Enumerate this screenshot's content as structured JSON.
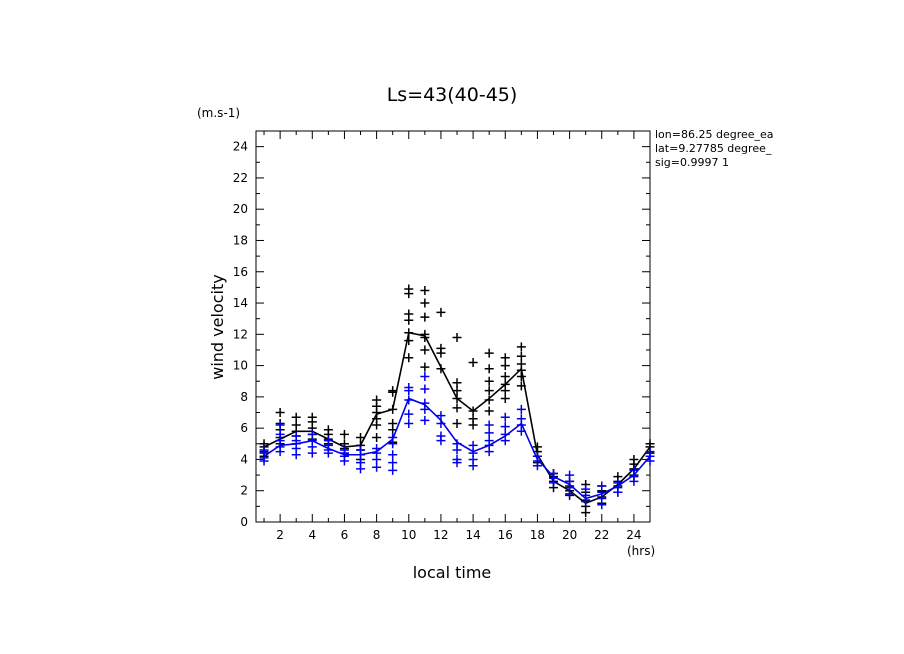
{
  "chart_data": {
    "type": "scatter",
    "title": "Ls=43(40-45)",
    "xlabel": "local time",
    "ylabel": "wind velocity",
    "x_unit": "(hrs)",
    "y_unit": "(m.s-1)",
    "xlim": [
      0.5,
      25
    ],
    "ylim": [
      0,
      25
    ],
    "x_ticks": [
      2,
      4,
      6,
      8,
      10,
      12,
      14,
      16,
      18,
      20,
      22,
      24
    ],
    "y_ticks": [
      0,
      2,
      4,
      6,
      8,
      10,
      12,
      14,
      16,
      18,
      20,
      22,
      24
    ],
    "annotations": [
      "lon=86.25 degree_ea",
      "lat=9.27785 degree_",
      "sig=0.9997 1"
    ],
    "series": [
      {
        "name": "black",
        "color": "#000000",
        "mean": {
          "x": [
            1,
            2,
            3,
            4,
            5,
            6,
            7,
            8,
            9,
            10,
            11,
            12,
            13,
            14,
            15,
            16,
            17,
            18,
            19,
            20,
            21,
            22,
            23,
            24,
            25
          ],
          "y": [
            4.8,
            5.3,
            5.8,
            5.8,
            5.3,
            4.8,
            4.9,
            6.9,
            7.2,
            12.1,
            11.9,
            9.9,
            7.9,
            7.1,
            7.9,
            8.8,
            9.8,
            4.3,
            2.6,
            2.0,
            1.2,
            1.6,
            2.4,
            3.4,
            4.8
          ]
        },
        "points": [
          [
            1,
            4.8
          ],
          [
            1,
            5.0
          ],
          [
            1,
            4.5
          ],
          [
            1,
            4.2
          ],
          [
            2,
            5.0
          ],
          [
            2,
            5.4
          ],
          [
            2,
            5.9
          ],
          [
            2,
            6.3
          ],
          [
            2,
            7.0
          ],
          [
            3,
            5.5
          ],
          [
            3,
            5.8
          ],
          [
            3,
            6.2
          ],
          [
            3,
            6.7
          ],
          [
            4,
            5.3
          ],
          [
            4,
            5.6
          ],
          [
            4,
            6.0
          ],
          [
            4,
            6.4
          ],
          [
            4,
            6.7
          ],
          [
            5,
            5.0
          ],
          [
            5,
            5.3
          ],
          [
            5,
            5.6
          ],
          [
            5,
            5.9
          ],
          [
            6,
            4.4
          ],
          [
            6,
            4.7
          ],
          [
            6,
            5.0
          ],
          [
            6,
            5.6
          ],
          [
            7,
            4.0
          ],
          [
            7,
            4.6
          ],
          [
            7,
            4.9
          ],
          [
            7,
            5.4
          ],
          [
            8,
            5.4
          ],
          [
            8,
            6.2
          ],
          [
            8,
            6.6
          ],
          [
            8,
            7.0
          ],
          [
            8,
            7.4
          ],
          [
            8,
            7.8
          ],
          [
            9,
            5.1
          ],
          [
            9,
            5.9
          ],
          [
            9,
            6.3
          ],
          [
            9,
            7.2
          ],
          [
            9,
            8.3
          ],
          [
            9,
            8.4
          ],
          [
            10,
            10.5
          ],
          [
            10,
            11.6
          ],
          [
            10,
            12.1
          ],
          [
            10,
            12.9
          ],
          [
            10,
            13.3
          ],
          [
            10,
            14.6
          ],
          [
            10,
            14.9
          ],
          [
            11,
            9.9
          ],
          [
            11,
            11.0
          ],
          [
            11,
            11.8
          ],
          [
            11,
            12.0
          ],
          [
            11,
            13.1
          ],
          [
            11,
            14.0
          ],
          [
            11,
            14.8
          ],
          [
            12,
            9.8
          ],
          [
            12,
            10.8
          ],
          [
            12,
            11.1
          ],
          [
            12,
            13.4
          ],
          [
            13,
            6.3
          ],
          [
            13,
            7.3
          ],
          [
            13,
            7.9
          ],
          [
            13,
            8.4
          ],
          [
            13,
            8.9
          ],
          [
            13,
            11.8
          ],
          [
            14,
            6.2
          ],
          [
            14,
            6.6
          ],
          [
            14,
            7.1
          ],
          [
            14,
            10.2
          ],
          [
            15,
            7.1
          ],
          [
            15,
            7.8
          ],
          [
            15,
            8.4
          ],
          [
            15,
            9.0
          ],
          [
            15,
            9.8
          ],
          [
            15,
            10.8
          ],
          [
            16,
            7.9
          ],
          [
            16,
            8.4
          ],
          [
            16,
            8.8
          ],
          [
            16,
            9.3
          ],
          [
            16,
            10.0
          ],
          [
            16,
            10.5
          ],
          [
            17,
            8.7
          ],
          [
            17,
            9.3
          ],
          [
            17,
            9.7
          ],
          [
            17,
            10.1
          ],
          [
            17,
            10.6
          ],
          [
            17,
            11.2
          ],
          [
            18,
            3.8
          ],
          [
            18,
            4.2
          ],
          [
            18,
            4.5
          ],
          [
            18,
            4.8
          ],
          [
            19,
            2.2
          ],
          [
            19,
            2.6
          ],
          [
            19,
            2.9
          ],
          [
            19,
            3.1
          ],
          [
            20,
            1.7
          ],
          [
            20,
            2.0
          ],
          [
            20,
            2.3
          ],
          [
            20,
            2.6
          ],
          [
            21,
            0.6
          ],
          [
            21,
            1.0
          ],
          [
            21,
            1.4
          ],
          [
            21,
            1.9
          ],
          [
            21,
            2.4
          ],
          [
            22,
            1.2
          ],
          [
            22,
            1.6
          ],
          [
            22,
            2.0
          ],
          [
            22,
            2.3
          ],
          [
            23,
            1.9
          ],
          [
            23,
            2.3
          ],
          [
            23,
            2.6
          ],
          [
            23,
            2.9
          ],
          [
            24,
            3.0
          ],
          [
            24,
            3.4
          ],
          [
            24,
            3.7
          ],
          [
            24,
            4.0
          ],
          [
            25,
            4.4
          ],
          [
            25,
            4.8
          ],
          [
            25,
            5.0
          ]
        ]
      },
      {
        "name": "blue",
        "color": "#0000ee",
        "mean": {
          "x": [
            1,
            2,
            3,
            4,
            5,
            6,
            7,
            8,
            9,
            10,
            11,
            12,
            13,
            14,
            15,
            16,
            17,
            18,
            19,
            20,
            21,
            22,
            23,
            24,
            25
          ],
          "y": [
            4.2,
            4.9,
            5.0,
            5.2,
            4.7,
            4.3,
            4.3,
            4.5,
            5.3,
            7.9,
            7.5,
            6.5,
            5.1,
            4.5,
            4.9,
            5.5,
            6.3,
            4.0,
            2.9,
            2.4,
            1.5,
            1.8,
            2.3,
            3.0,
            4.2
          ]
        },
        "points": [
          [
            1,
            3.9
          ],
          [
            1,
            4.1
          ],
          [
            1,
            4.4
          ],
          [
            1,
            4.6
          ],
          [
            2,
            4.5
          ],
          [
            2,
            4.8
          ],
          [
            2,
            5.2
          ],
          [
            2,
            5.6
          ],
          [
            2,
            6.2
          ],
          [
            3,
            4.3
          ],
          [
            3,
            4.7
          ],
          [
            3,
            5.0
          ],
          [
            3,
            5.2
          ],
          [
            3,
            5.5
          ],
          [
            4,
            4.4
          ],
          [
            4,
            4.8
          ],
          [
            4,
            5.2
          ],
          [
            4,
            5.6
          ],
          [
            5,
            4.4
          ],
          [
            5,
            4.6
          ],
          [
            5,
            4.9
          ],
          [
            5,
            5.2
          ],
          [
            6,
            3.9
          ],
          [
            6,
            4.2
          ],
          [
            6,
            4.4
          ],
          [
            6,
            4.6
          ],
          [
            7,
            3.4
          ],
          [
            7,
            3.8
          ],
          [
            7,
            4.3
          ],
          [
            7,
            4.6
          ],
          [
            8,
            3.5
          ],
          [
            8,
            4.0
          ],
          [
            8,
            4.4
          ],
          [
            8,
            4.7
          ],
          [
            9,
            3.3
          ],
          [
            9,
            3.8
          ],
          [
            9,
            4.3
          ],
          [
            9,
            5.0
          ],
          [
            9,
            5.4
          ],
          [
            10,
            6.3
          ],
          [
            10,
            6.9
          ],
          [
            10,
            7.8
          ],
          [
            10,
            8.4
          ],
          [
            10,
            8.6
          ],
          [
            11,
            6.5
          ],
          [
            11,
            7.2
          ],
          [
            11,
            7.6
          ],
          [
            11,
            8.5
          ],
          [
            11,
            9.3
          ],
          [
            12,
            5.2
          ],
          [
            12,
            5.5
          ],
          [
            12,
            6.3
          ],
          [
            12,
            6.8
          ],
          [
            13,
            3.8
          ],
          [
            13,
            4.0
          ],
          [
            13,
            4.6
          ],
          [
            13,
            5.0
          ],
          [
            14,
            3.6
          ],
          [
            14,
            4.0
          ],
          [
            14,
            4.4
          ],
          [
            14,
            4.9
          ],
          [
            15,
            4.5
          ],
          [
            15,
            4.9
          ],
          [
            15,
            5.2
          ],
          [
            15,
            5.7
          ],
          [
            15,
            6.2
          ],
          [
            16,
            5.2
          ],
          [
            16,
            5.6
          ],
          [
            16,
            6.1
          ],
          [
            16,
            6.7
          ],
          [
            17,
            5.8
          ],
          [
            17,
            6.2
          ],
          [
            17,
            6.6
          ],
          [
            17,
            7.2
          ],
          [
            18,
            3.6
          ],
          [
            18,
            3.9
          ],
          [
            18,
            4.2
          ],
          [
            19,
            2.5
          ],
          [
            19,
            2.8
          ],
          [
            19,
            3.1
          ],
          [
            20,
            1.8
          ],
          [
            20,
            2.2
          ],
          [
            20,
            2.6
          ],
          [
            20,
            3.0
          ],
          [
            21,
            1.3
          ],
          [
            21,
            1.7
          ],
          [
            21,
            2.1
          ],
          [
            22,
            1.1
          ],
          [
            22,
            1.5
          ],
          [
            22,
            1.9
          ],
          [
            22,
            2.3
          ],
          [
            23,
            1.9
          ],
          [
            23,
            2.2
          ],
          [
            23,
            2.5
          ],
          [
            24,
            2.6
          ],
          [
            24,
            2.9
          ],
          [
            24,
            3.3
          ],
          [
            25,
            3.9
          ],
          [
            25,
            4.2
          ],
          [
            25,
            4.5
          ]
        ]
      }
    ]
  }
}
